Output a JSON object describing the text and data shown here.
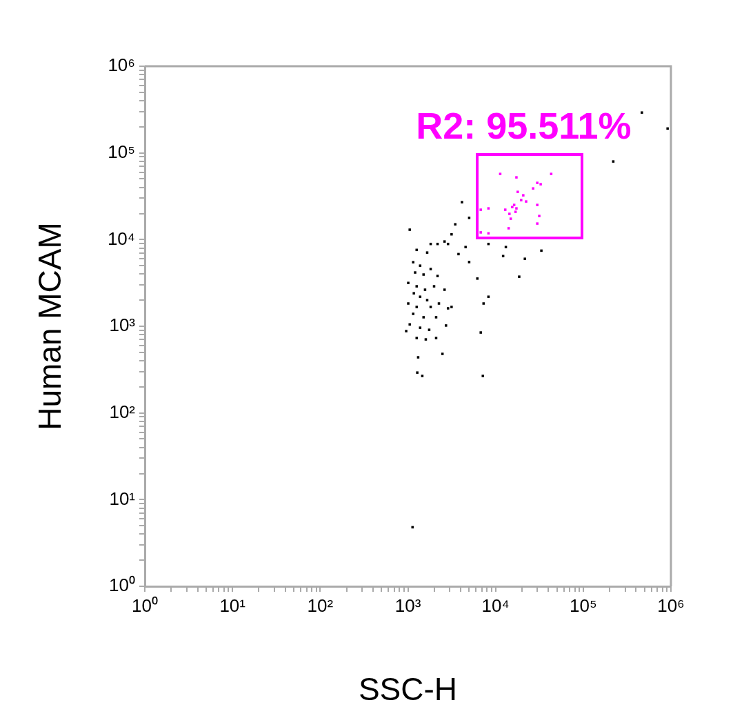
{
  "chart_data": {
    "type": "scatter",
    "xlabel": "SSC-H",
    "ylabel": "Human MCAM",
    "log": "xy",
    "grid": false,
    "legend": false,
    "marker": "square",
    "xlim": [
      1,
      1000000
    ],
    "ylim": [
      1,
      1000000
    ],
    "xticks": [
      {
        "value": 1,
        "label": "10⁰"
      },
      {
        "value": 2,
        "label": null
      },
      {
        "value": 3,
        "label": null
      },
      {
        "value": 4,
        "label": null
      },
      {
        "value": 5,
        "label": null
      },
      {
        "value": 6,
        "label": null
      },
      {
        "value": 7,
        "label": null
      },
      {
        "value": 8,
        "label": null
      },
      {
        "value": 9,
        "label": null
      },
      {
        "value": 10,
        "label": "10¹"
      },
      {
        "value": 20,
        "label": null
      },
      {
        "value": 30,
        "label": null
      },
      {
        "value": 40,
        "label": null
      },
      {
        "value": 50,
        "label": null
      },
      {
        "value": 60,
        "label": null
      },
      {
        "value": 70,
        "label": null
      },
      {
        "value": 80,
        "label": null
      },
      {
        "value": 90,
        "label": null
      },
      {
        "value": 100,
        "label": "10²"
      },
      {
        "value": 200,
        "label": null
      },
      {
        "value": 300,
        "label": null
      },
      {
        "value": 400,
        "label": null
      },
      {
        "value": 500,
        "label": null
      },
      {
        "value": 600,
        "label": null
      },
      {
        "value": 700,
        "label": null
      },
      {
        "value": 800,
        "label": null
      },
      {
        "value": 900,
        "label": null
      },
      {
        "value": 1000,
        "label": "10³"
      },
      {
        "value": 2000,
        "label": null
      },
      {
        "value": 3000,
        "label": null
      },
      {
        "value": 4000,
        "label": null
      },
      {
        "value": 5000,
        "label": null
      },
      {
        "value": 6000,
        "label": null
      },
      {
        "value": 7000,
        "label": null
      },
      {
        "value": 8000,
        "label": null
      },
      {
        "value": 9000,
        "label": null
      },
      {
        "value": 10000,
        "label": "10⁴"
      },
      {
        "value": 20000,
        "label": null
      },
      {
        "value": 30000,
        "label": null
      },
      {
        "value": 40000,
        "label": null
      },
      {
        "value": 50000,
        "label": null
      },
      {
        "value": 60000,
        "label": null
      },
      {
        "value": 70000,
        "label": null
      },
      {
        "value": 80000,
        "label": null
      },
      {
        "value": 90000,
        "label": null
      },
      {
        "value": 100000,
        "label": "10⁵"
      },
      {
        "value": 200000,
        "label": null
      },
      {
        "value": 300000,
        "label": null
      },
      {
        "value": 400000,
        "label": null
      },
      {
        "value": 500000,
        "label": null
      },
      {
        "value": 600000,
        "label": null
      },
      {
        "value": 700000,
        "label": null
      },
      {
        "value": 800000,
        "label": null
      },
      {
        "value": 900000,
        "label": null
      },
      {
        "value": 1000000,
        "label": "10⁶"
      }
    ],
    "yticks": [
      {
        "value": 1,
        "label": "10⁰"
      },
      {
        "value": 2,
        "label": null
      },
      {
        "value": 3,
        "label": null
      },
      {
        "value": 4,
        "label": null
      },
      {
        "value": 5,
        "label": null
      },
      {
        "value": 6,
        "label": null
      },
      {
        "value": 7,
        "label": null
      },
      {
        "value": 8,
        "label": null
      },
      {
        "value": 9,
        "label": null
      },
      {
        "value": 10,
        "label": "10¹"
      },
      {
        "value": 20,
        "label": null
      },
      {
        "value": 30,
        "label": null
      },
      {
        "value": 40,
        "label": null
      },
      {
        "value": 50,
        "label": null
      },
      {
        "value": 60,
        "label": null
      },
      {
        "value": 70,
        "label": null
      },
      {
        "value": 80,
        "label": null
      },
      {
        "value": 90,
        "label": null
      },
      {
        "value": 100,
        "label": "10²"
      },
      {
        "value": 200,
        "label": null
      },
      {
        "value": 300,
        "label": null
      },
      {
        "value": 400,
        "label": null
      },
      {
        "value": 500,
        "label": null
      },
      {
        "value": 600,
        "label": null
      },
      {
        "value": 700,
        "label": null
      },
      {
        "value": 800,
        "label": null
      },
      {
        "value": 900,
        "label": null
      },
      {
        "value": 1000,
        "label": "10³"
      },
      {
        "value": 2000,
        "label": null
      },
      {
        "value": 3000,
        "label": null
      },
      {
        "value": 4000,
        "label": null
      },
      {
        "value": 5000,
        "label": null
      },
      {
        "value": 6000,
        "label": null
      },
      {
        "value": 7000,
        "label": null
      },
      {
        "value": 8000,
        "label": null
      },
      {
        "value": 9000,
        "label": null
      },
      {
        "value": 10000,
        "label": "10⁴"
      },
      {
        "value": 20000,
        "label": null
      },
      {
        "value": 30000,
        "label": null
      },
      {
        "value": 40000,
        "label": null
      },
      {
        "value": 50000,
        "label": null
      },
      {
        "value": 60000,
        "label": null
      },
      {
        "value": 70000,
        "label": null
      },
      {
        "value": 80000,
        "label": null
      },
      {
        "value": 90000,
        "label": null
      },
      {
        "value": 100000,
        "label": "10⁵"
      },
      {
        "value": 200000,
        "label": null
      },
      {
        "value": 300000,
        "label": null
      },
      {
        "value": 400000,
        "label": null
      },
      {
        "value": 500000,
        "label": null
      },
      {
        "value": 600000,
        "label": null
      },
      {
        "value": 700000,
        "label": null
      },
      {
        "value": 800000,
        "label": null
      },
      {
        "value": 900000,
        "label": null
      },
      {
        "value": 1000000,
        "label": "10⁶"
      }
    ],
    "annotations": [
      "R2: 95.511%"
    ],
    "series": [
      {
        "color": "#000000",
        "x": [
          1050,
          4140,
          5000,
          3470,
          3150,
          2620,
          1820,
          2180,
          2870,
          4550,
          8300,
          13100,
          33300,
          21600,
          12200,
          1260,
          1660,
          3780,
          5000,
          6200,
          18600,
          1150,
          1380,
          1210,
          1510,
          1820,
          2180,
          1010,
          1260,
          1570,
          1990,
          2620,
          1170,
          1380,
          1660,
          1010,
          1260,
          1820,
          2260,
          1150,
          1510,
          2100,
          2870,
          1050,
          1380,
          1750,
          1260,
          1600,
          2100,
          2720,
          3150,
          957,
          1310,
          1280,
          1460,
          2480,
          6780,
          7300,
          8300,
          7160,
          1130,
          220000,
          466000,
          916000
        ],
        "values": [
          13000,
          27000,
          17800,
          15000,
          11500,
          9500,
          8900,
          8900,
          8900,
          8200,
          8900,
          8200,
          7450,
          6000,
          6450,
          7600,
          7080,
          6800,
          5500,
          3550,
          3730,
          5480,
          5000,
          4170,
          3950,
          4570,
          3800,
          3160,
          2890,
          2640,
          2890,
          2640,
          2400,
          2190,
          2000,
          1830,
          1670,
          1670,
          1830,
          1390,
          1270,
          1270,
          1610,
          1050,
          962,
          910,
          731,
          705,
          731,
          1020,
          1670,
          879,
          438,
          292,
          267,
          480,
          847,
          1830,
          2190,
          267,
          4.8,
          79600,
          292000,
          191000
        ]
      },
      {
        "color": "#ff00ff",
        "x": [
          11300,
          17300,
          43100,
          29900,
          26800,
          32700,
          20700,
          19600,
          16300,
          15500,
          17300,
          14400,
          14900,
          12900,
          8300,
          6780,
          29900,
          31500,
          29900,
          14100,
          6780,
          8300,
          22300,
          16900,
          17900
        ],
        "values": [
          57200,
          52200,
          57200,
          45100,
          38900,
          43500,
          32400,
          28500,
          25100,
          23700,
          22900,
          19800,
          17400,
          22100,
          22900,
          22100,
          25100,
          18700,
          15300,
          13500,
          12100,
          11800,
          27500,
          20900,
          35500
        ]
      }
    ]
  }
}
